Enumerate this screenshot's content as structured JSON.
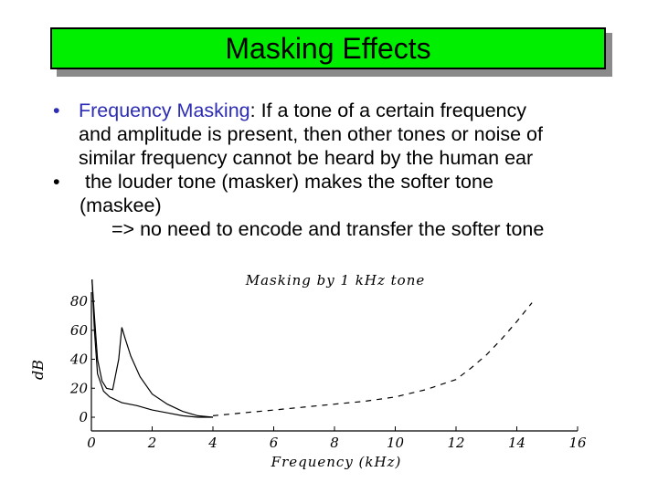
{
  "slide": {
    "title": "Masking Effects",
    "bullet1": {
      "highlight": "Frequency Masking",
      "text_after": ": If a tone of a certain frequency",
      "line2": "and amplitude is present, then other tones or noise of",
      "line3": "similar frequency cannot be heard by the human ear"
    },
    "bullet2": {
      "line1": " the louder tone (masker) makes the softer tone",
      "line2": "(maskee)"
    },
    "arrow_line": "=> no need to encode and transfer the softer tone",
    "bullet_glyph": "•",
    "colors": {
      "title_bg": "#00ee00",
      "highlight": "#2c2cb4"
    }
  },
  "chart_data": {
    "type": "line",
    "title": "Masking by 1 kHz tone",
    "xlabel": "Frequency (kHz)",
    "ylabel": "dB",
    "xlim": [
      0,
      16
    ],
    "ylim": [
      0,
      80
    ],
    "x_ticks": [
      "0",
      "2",
      "4",
      "6",
      "8",
      "10",
      "12",
      "14",
      "16"
    ],
    "y_ticks": [
      "80",
      "60",
      "40",
      "20",
      "0"
    ],
    "series": [
      {
        "style": "solid",
        "x": [
          0.02,
          0.1,
          0.2,
          0.35,
          0.5,
          0.7,
          0.9,
          1.0,
          1.1,
          1.3,
          1.6,
          2.0,
          2.5,
          3.0,
          3.5,
          4.0
        ],
        "y": [
          95,
          70,
          40,
          25,
          20,
          19,
          40,
          62,
          55,
          42,
          28,
          16,
          9,
          4,
          1,
          0
        ]
      },
      {
        "style": "solid",
        "x": [
          0.02,
          0.1,
          0.2,
          0.4,
          0.6,
          1.0,
          1.5,
          2.0,
          2.5,
          3.0,
          3.5,
          4.0
        ],
        "y": [
          95,
          60,
          30,
          18,
          14,
          10,
          8,
          5,
          3,
          1,
          0,
          0
        ]
      },
      {
        "style": "dashed",
        "x": [
          4.0,
          5.0,
          6.0,
          7.0,
          8.0,
          9.0,
          10.0,
          11.0,
          12.0,
          12.5,
          13.0,
          13.5,
          14.0,
          14.5
        ],
        "y": [
          1,
          3,
          5,
          7,
          9,
          11,
          14,
          19,
          26,
          34,
          43,
          54,
          66,
          79
        ]
      }
    ],
    "grid": false
  }
}
